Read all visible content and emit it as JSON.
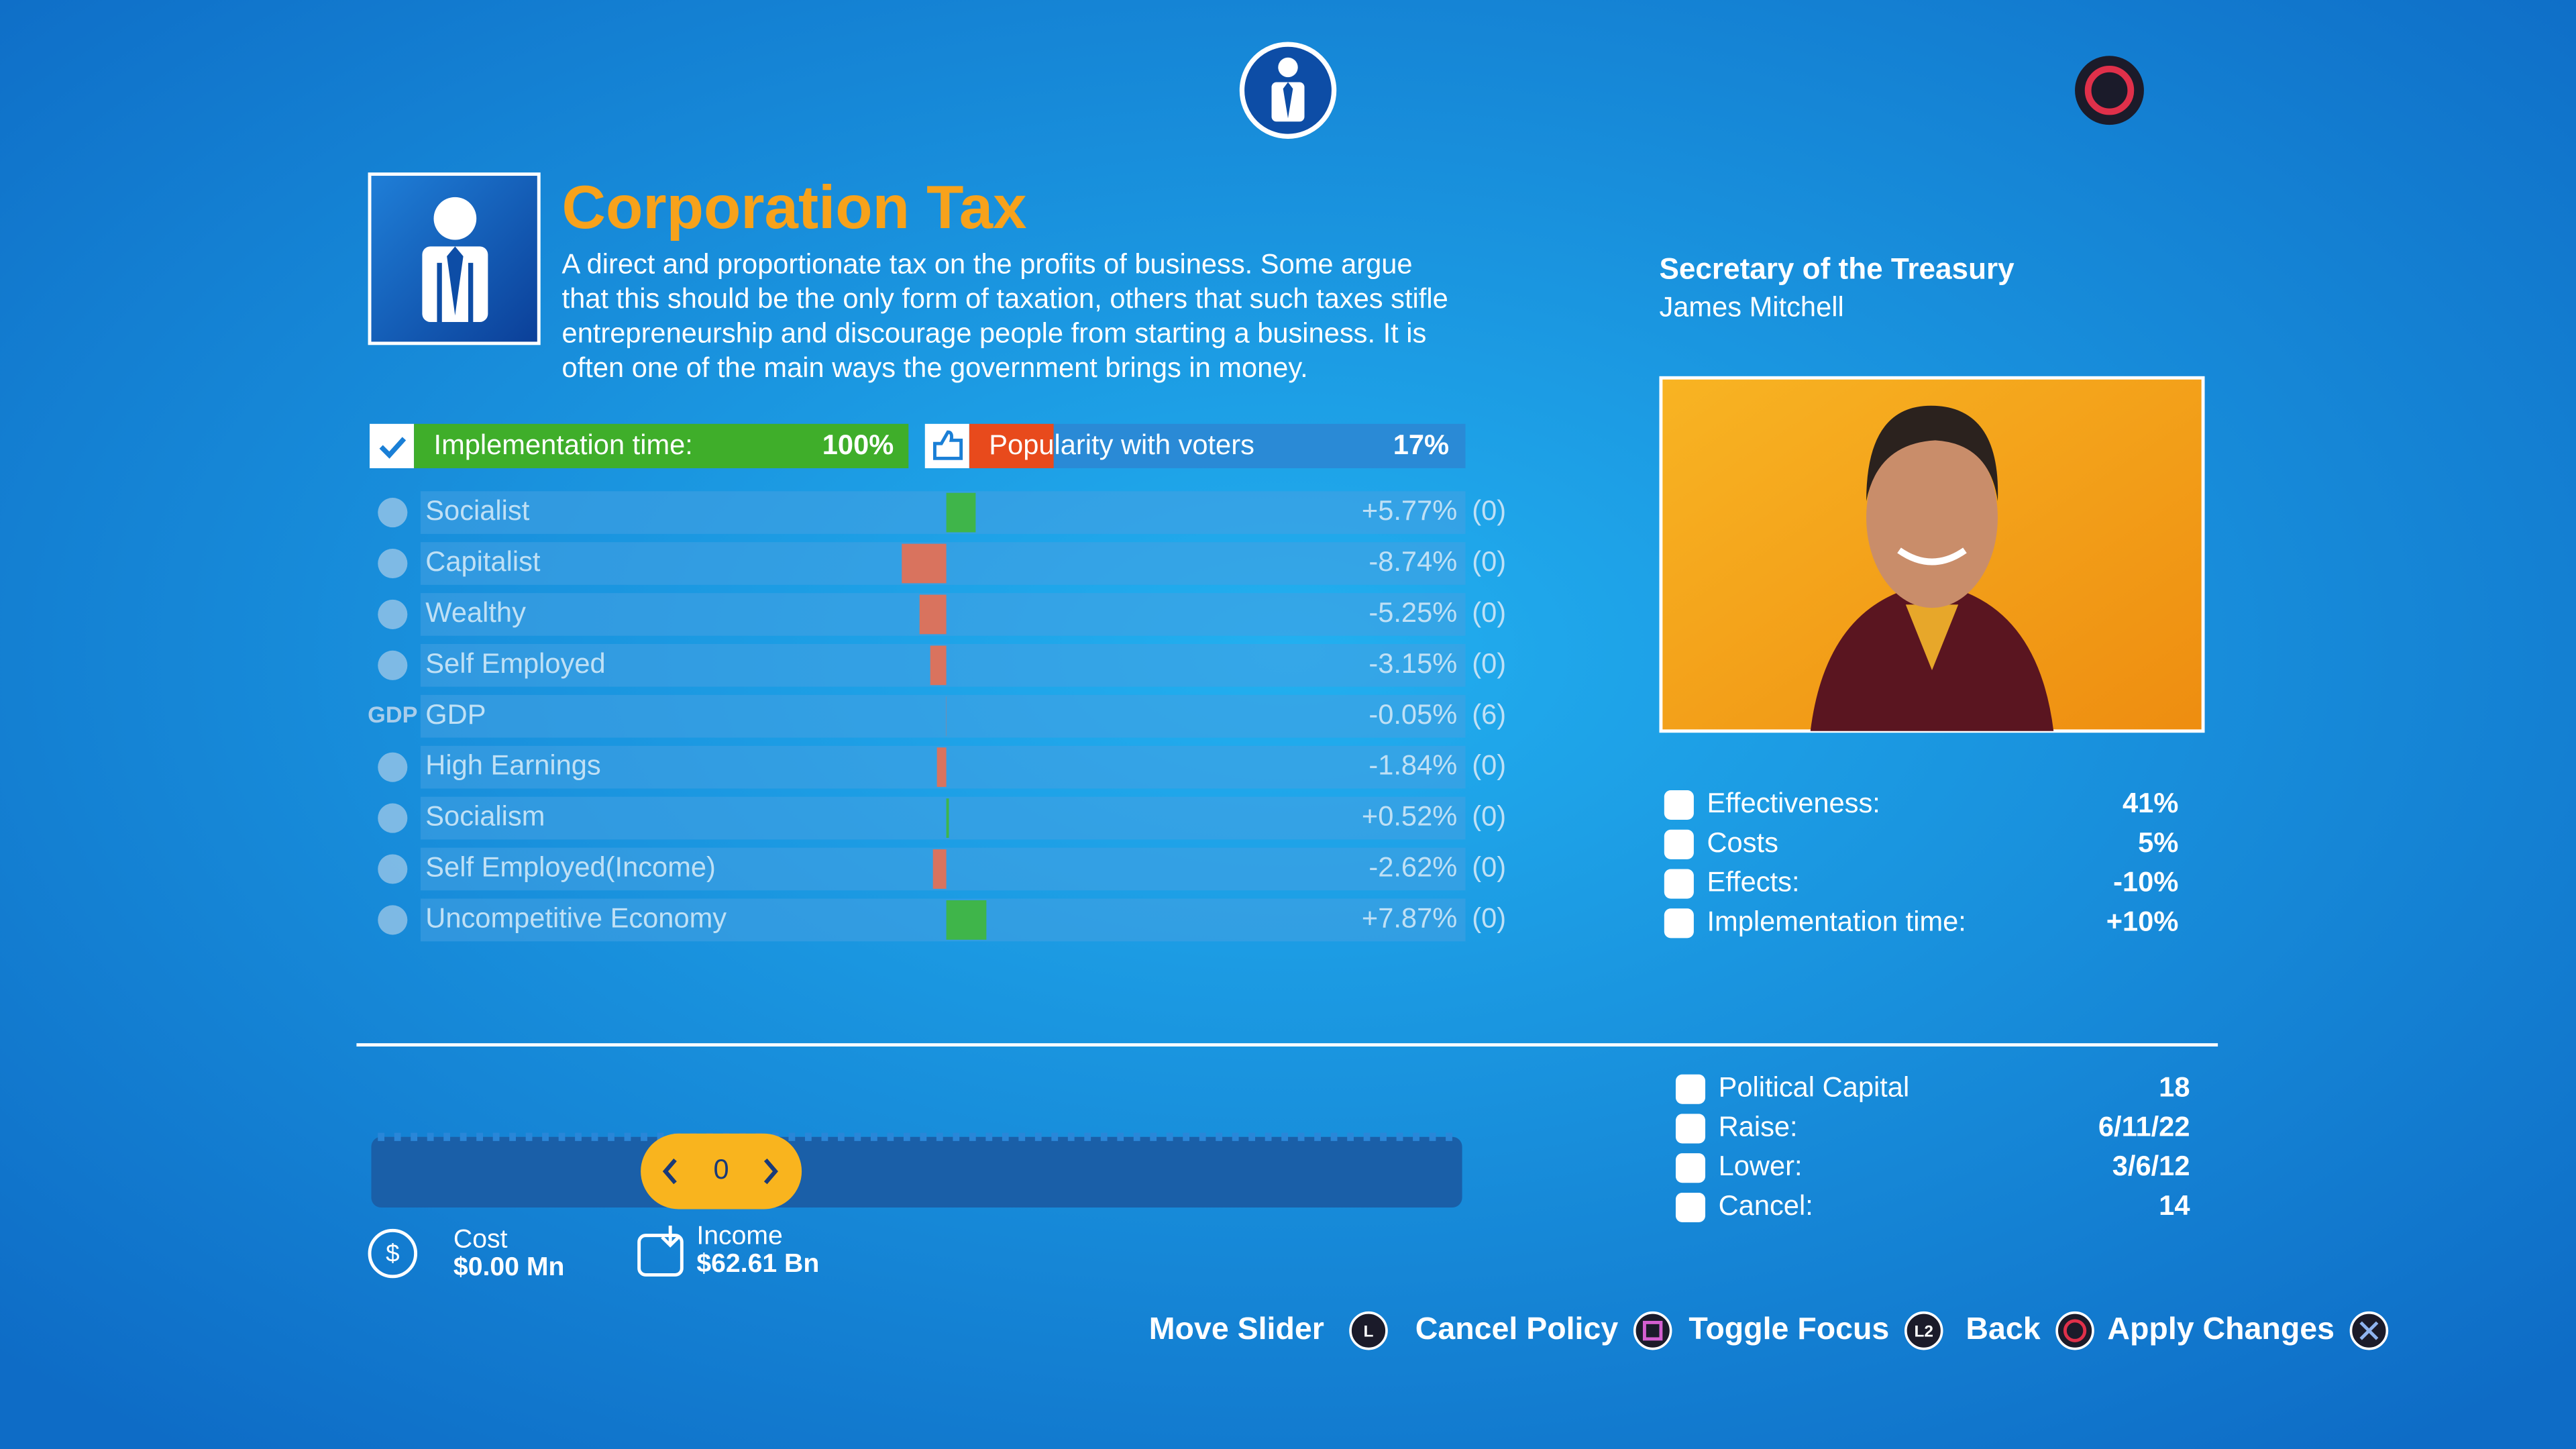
{
  "top_bar": {
    "record_indicator": true
  },
  "policy": {
    "title": "Corporation Tax",
    "description_lines": [
      "A direct and proportionate tax on the profits of business. Some argue",
      "that this should be the only form of taxation, others that such taxes stifle",
      "entrepreneurship and discourage people from starting a business. It is",
      "often one of the main ways the government brings in money."
    ],
    "implementation": {
      "label": "Implementation time:",
      "value": 100,
      "value_label": "100%"
    },
    "popularity": {
      "label": "Popularity with voters",
      "value": 17,
      "value_label": "17%"
    },
    "effects": [
      {
        "name": "Socialist",
        "value": 5.77,
        "value_label": "+5.77%",
        "extra": "(0)"
      },
      {
        "name": "Capitalist",
        "value": -8.74,
        "value_label": "-8.74%",
        "extra": "(0)"
      },
      {
        "name": "Wealthy",
        "value": -5.25,
        "value_label": "-5.25%",
        "extra": "(0)"
      },
      {
        "name": "Self Employed",
        "value": -3.15,
        "value_label": "-3.15%",
        "extra": "(0)"
      },
      {
        "name": "GDP",
        "icon_text": "GDP",
        "value": -0.05,
        "value_label": "-0.05%",
        "extra": "(6)"
      },
      {
        "name": "High Earnings",
        "value": -1.84,
        "value_label": "-1.84%",
        "extra": "(0)"
      },
      {
        "name": "Socialism",
        "value": 0.52,
        "value_label": "+0.52%",
        "extra": "(0)"
      },
      {
        "name": "Self Employed(Income)",
        "value": -2.62,
        "value_label": "-2.62%",
        "extra": "(0)"
      },
      {
        "name": "Uncompetitive Economy",
        "value": 7.87,
        "value_label": "+7.87%",
        "extra": "(0)"
      }
    ]
  },
  "minister": {
    "title": "Secretary of the Treasury",
    "name": "James Mitchell",
    "stats": [
      {
        "label": "Effectiveness:",
        "value": "41%"
      },
      {
        "label": "Costs",
        "value": "5%"
      },
      {
        "label": "Effects:",
        "value": "-10%"
      },
      {
        "label": "Implementation time:",
        "value": "+10%"
      }
    ]
  },
  "capital": [
    {
      "label": "Political Capital",
      "value": "18"
    },
    {
      "label": "Raise:",
      "value": "6/11/22"
    },
    {
      "label": "Lower:",
      "value": "3/6/12"
    },
    {
      "label": "Cancel:",
      "value": "14"
    }
  ],
  "slider": {
    "value": "0"
  },
  "cost": {
    "label": "Cost",
    "value": "$0.00 Mn"
  },
  "income": {
    "label": "Income",
    "value": "$62.61 Bn"
  },
  "controls": [
    {
      "label": "Move Slider",
      "key": "L"
    },
    {
      "label": "Cancel Policy"
    },
    {
      "label": "Toggle Focus",
      "key": "L2"
    },
    {
      "label": "Back"
    },
    {
      "label": "Apply Changes"
    }
  ]
}
